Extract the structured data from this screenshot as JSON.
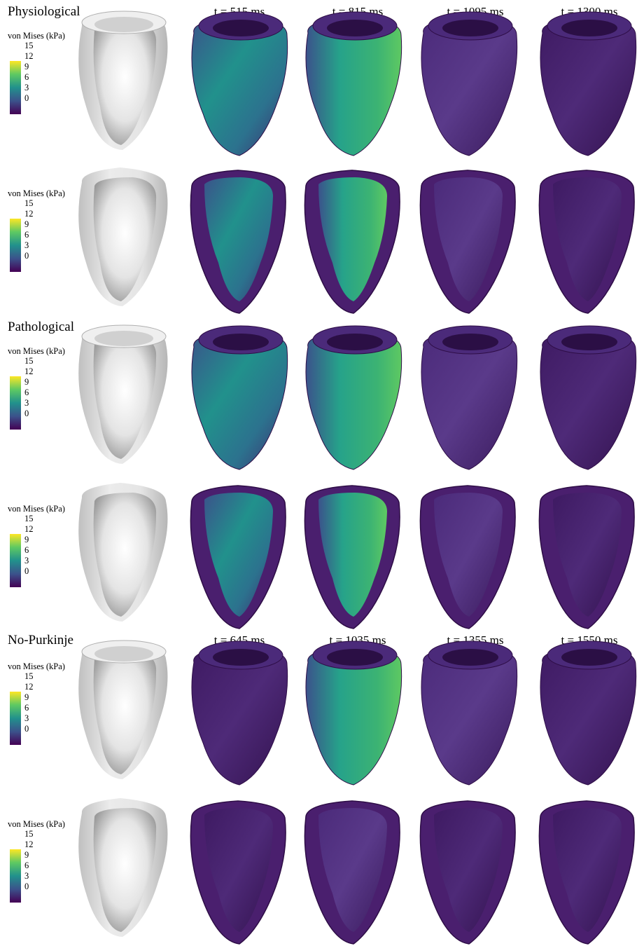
{
  "sections": {
    "physiological": "Physiological",
    "pathological": "Pathological",
    "no_purkinje": "No-Purkinje"
  },
  "times_top": [
    "t = 515 ms",
    "t = 815 ms",
    "t = 1095 ms",
    "t = 1300 ms"
  ],
  "times_bottom": [
    "t = 645 ms",
    "t = 1035 ms",
    "t = 1355 ms",
    "t = 1550 ms"
  ],
  "colorbar": {
    "title": "von Mises (kPa)",
    "ticks": [
      "15",
      "12",
      "9",
      "6",
      "3",
      "0"
    ],
    "colormap": [
      "#440154",
      "#3b528b",
      "#21918c",
      "#5ec962",
      "#fde725"
    ]
  },
  "colors": {
    "reference_gray": "#d9d9d9",
    "cavity_purple": "#3a1a5c",
    "tissue_purple": "#4a1f6e"
  }
}
